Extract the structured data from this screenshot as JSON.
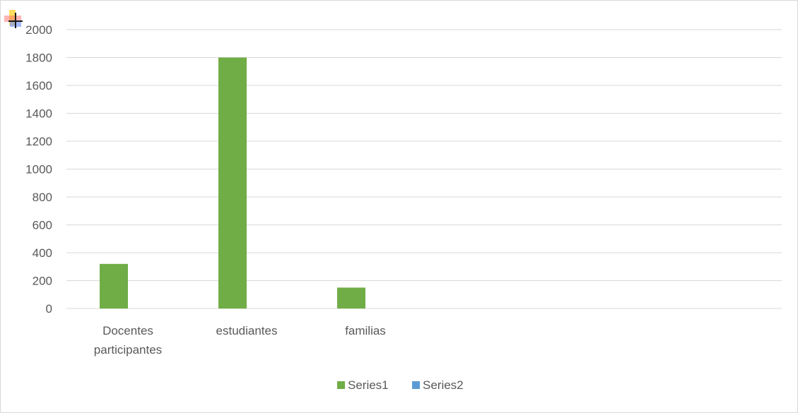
{
  "chart_data": {
    "type": "bar",
    "categories": [
      "Docentes participantes",
      "estudiantes",
      "familias"
    ],
    "category_label_lines": [
      [
        "Docentes",
        "participantes"
      ],
      [
        "estudiantes"
      ],
      [
        "familias"
      ]
    ],
    "series": [
      {
        "name": "Series1",
        "color": "#70ad47",
        "values": [
          320,
          1800,
          150
        ]
      },
      {
        "name": "Series2",
        "color": "#5b9bd5",
        "values": [
          0,
          0,
          0
        ]
      }
    ],
    "title": "",
    "xlabel": "",
    "ylabel": "",
    "ylim": [
      0,
      2000
    ],
    "yticks": [
      "0",
      "200",
      "400",
      "600",
      "800",
      "1000",
      "1200",
      "1400",
      "1600",
      "1800",
      "2000"
    ],
    "grid": true,
    "legend_position": "bottom",
    "gridline_color": "#d9d9d9"
  }
}
